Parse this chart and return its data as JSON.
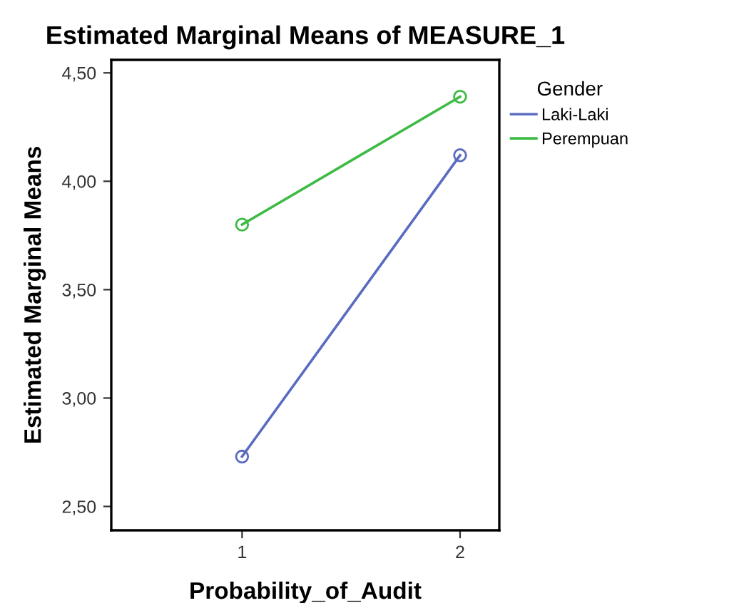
{
  "chart_data": {
    "type": "line",
    "title": "Estimated Marginal Means of MEASURE_1",
    "xlabel": "Probability_of_Audit",
    "ylabel": "Estimated Marginal Means",
    "legend_title": "Gender",
    "x": [
      1,
      2
    ],
    "series": [
      {
        "name": "Laki-Laki",
        "color": "#5b6cc0",
        "values": [
          2.73,
          4.12
        ]
      },
      {
        "name": "Perempuan",
        "color": "#3dbb45",
        "values": [
          3.8,
          4.39
        ]
      }
    ],
    "xlim": [
      0.4,
      2.18
    ],
    "xticks": [
      1,
      2
    ],
    "ylim": [
      2.39,
      4.56
    ],
    "yticks": [
      {
        "value": 2.5,
        "label": "2,50"
      },
      {
        "value": 3.0,
        "label": "3,00"
      },
      {
        "value": 3.5,
        "label": "3,50"
      },
      {
        "value": 4.0,
        "label": "4,00"
      },
      {
        "value": 4.5,
        "label": "4,50"
      }
    ],
    "marker": "circle",
    "line_style": "solid",
    "legend": "top right",
    "grid": false
  }
}
